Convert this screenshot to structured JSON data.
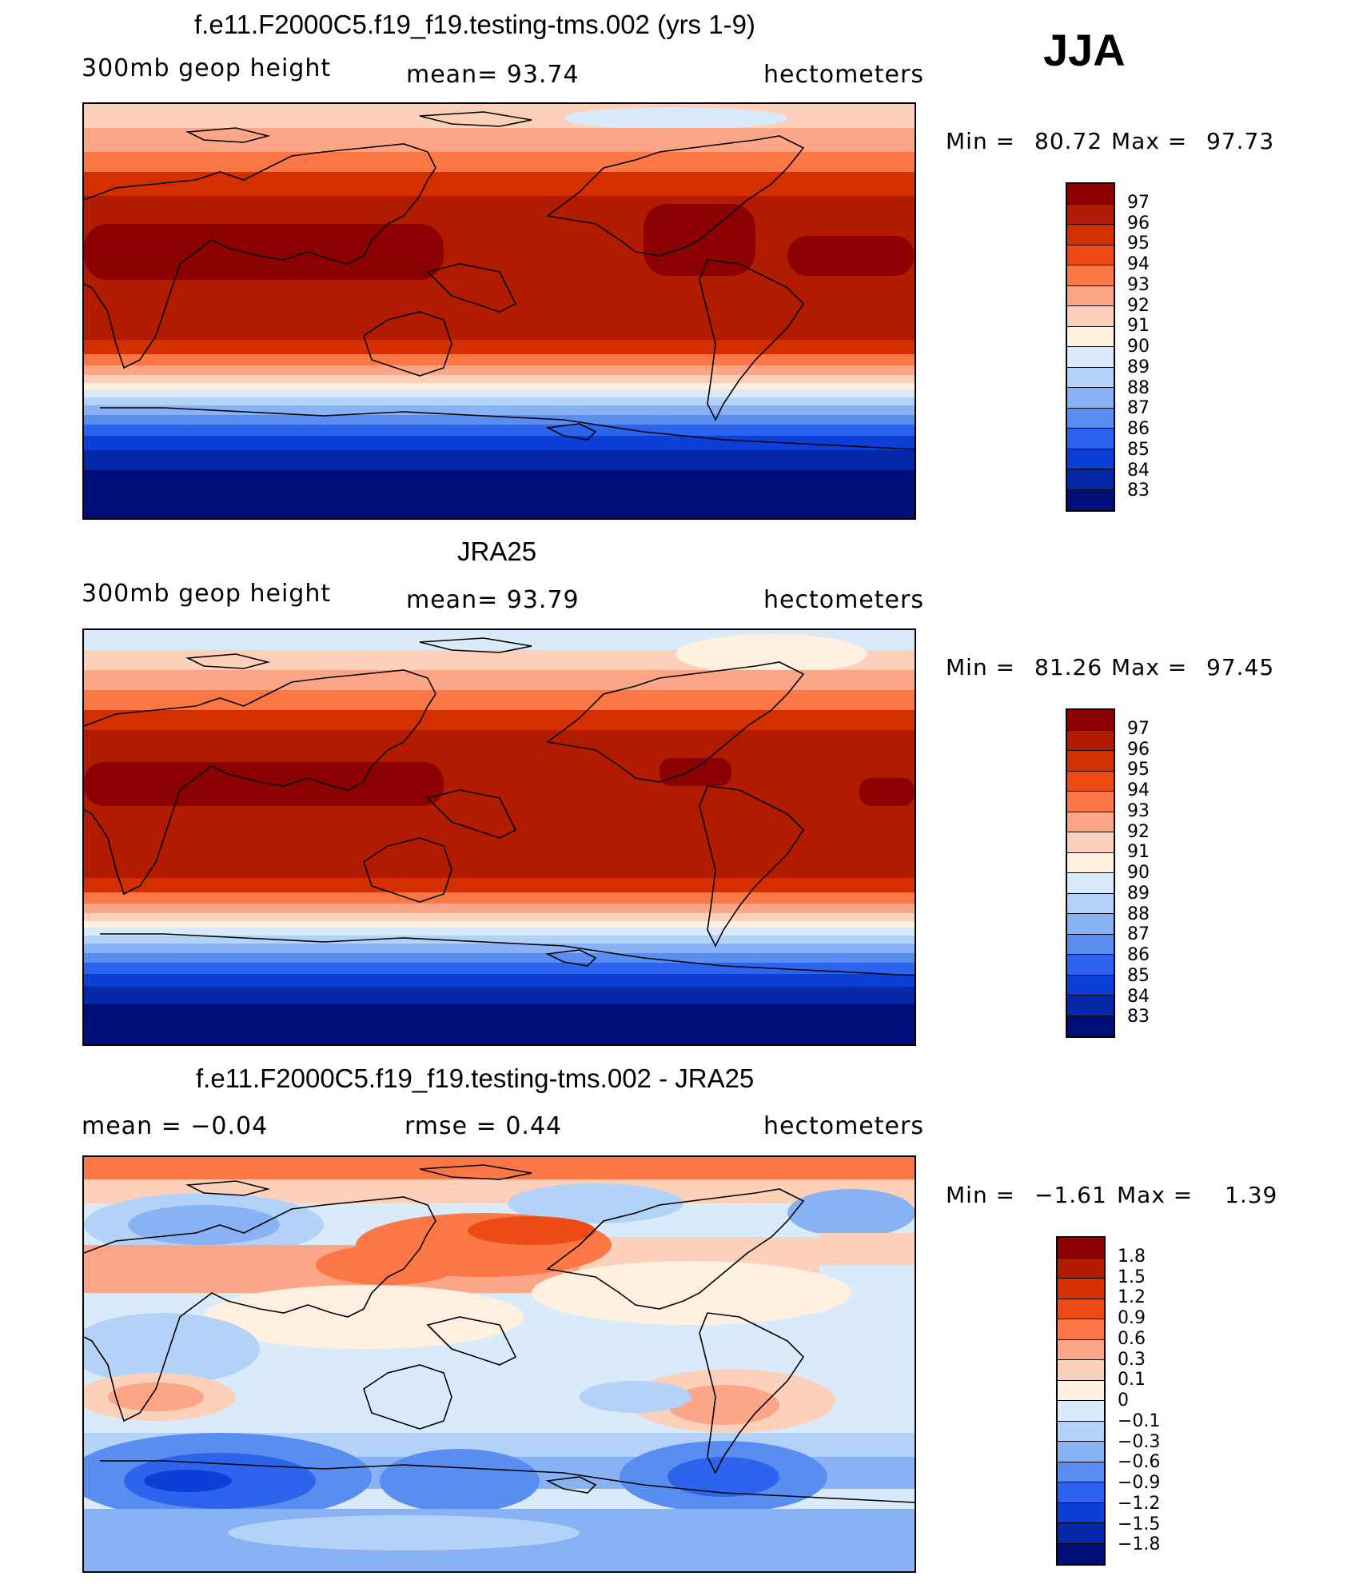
{
  "season": "JJA",
  "panels": [
    {
      "title": "f.e11.F2000C5.f19_f19.testing-tms.002 (yrs 1-9)",
      "left_label": "300mb  geop  height",
      "center_label": "mean=   93.74",
      "right_label": "hectometers",
      "min_label": "Min  =",
      "min_value": "80.72",
      "max_label": "Max  =",
      "max_value": "97.73",
      "legend_labels": [
        "97",
        "96",
        "95",
        "94",
        "93",
        "92",
        "91",
        "90",
        "89",
        "88",
        "87",
        "86",
        "85",
        "84",
        "83"
      ]
    },
    {
      "title": "JRA25",
      "left_label": "300mb  geop  height",
      "center_label": "mean=   93.79",
      "right_label": "hectometers",
      "min_label": "Min  =",
      "min_value": "81.26",
      "max_label": "Max  =",
      "max_value": "97.45",
      "legend_labels": [
        "97",
        "96",
        "95",
        "94",
        "93",
        "92",
        "91",
        "90",
        "89",
        "88",
        "87",
        "86",
        "85",
        "84",
        "83"
      ]
    },
    {
      "title": "f.e11.F2000C5.f19_f19.testing-tms.002 - JRA25",
      "left_label": "mean  =    −0.04",
      "center_label": "rmse  =     0.44",
      "right_label": "hectometers",
      "min_label": "Min  =",
      "min_value": "−1.61",
      "max_label": "Max  =",
      "max_value": "1.39",
      "legend_labels": [
        "1.8",
        "1.5",
        "1.2",
        "0.9",
        "0.6",
        "0.3",
        "0.1",
        "0",
        "−0.1",
        "−0.3",
        "−0.6",
        "−0.9",
        "−1.2",
        "−1.5",
        "−1.8"
      ]
    }
  ],
  "legend_colors": [
    "#8b0000",
    "#b11b00",
    "#d42f00",
    "#ee4a16",
    "#fb7746",
    "#fca587",
    "#fdd0b9",
    "#fff0e0",
    "#d9eafb",
    "#b3d2f7",
    "#88b2f4",
    "#5a8df0",
    "#2c64ee",
    "#0b3fd8",
    "#0528a9",
    "#000e7a"
  ]
}
